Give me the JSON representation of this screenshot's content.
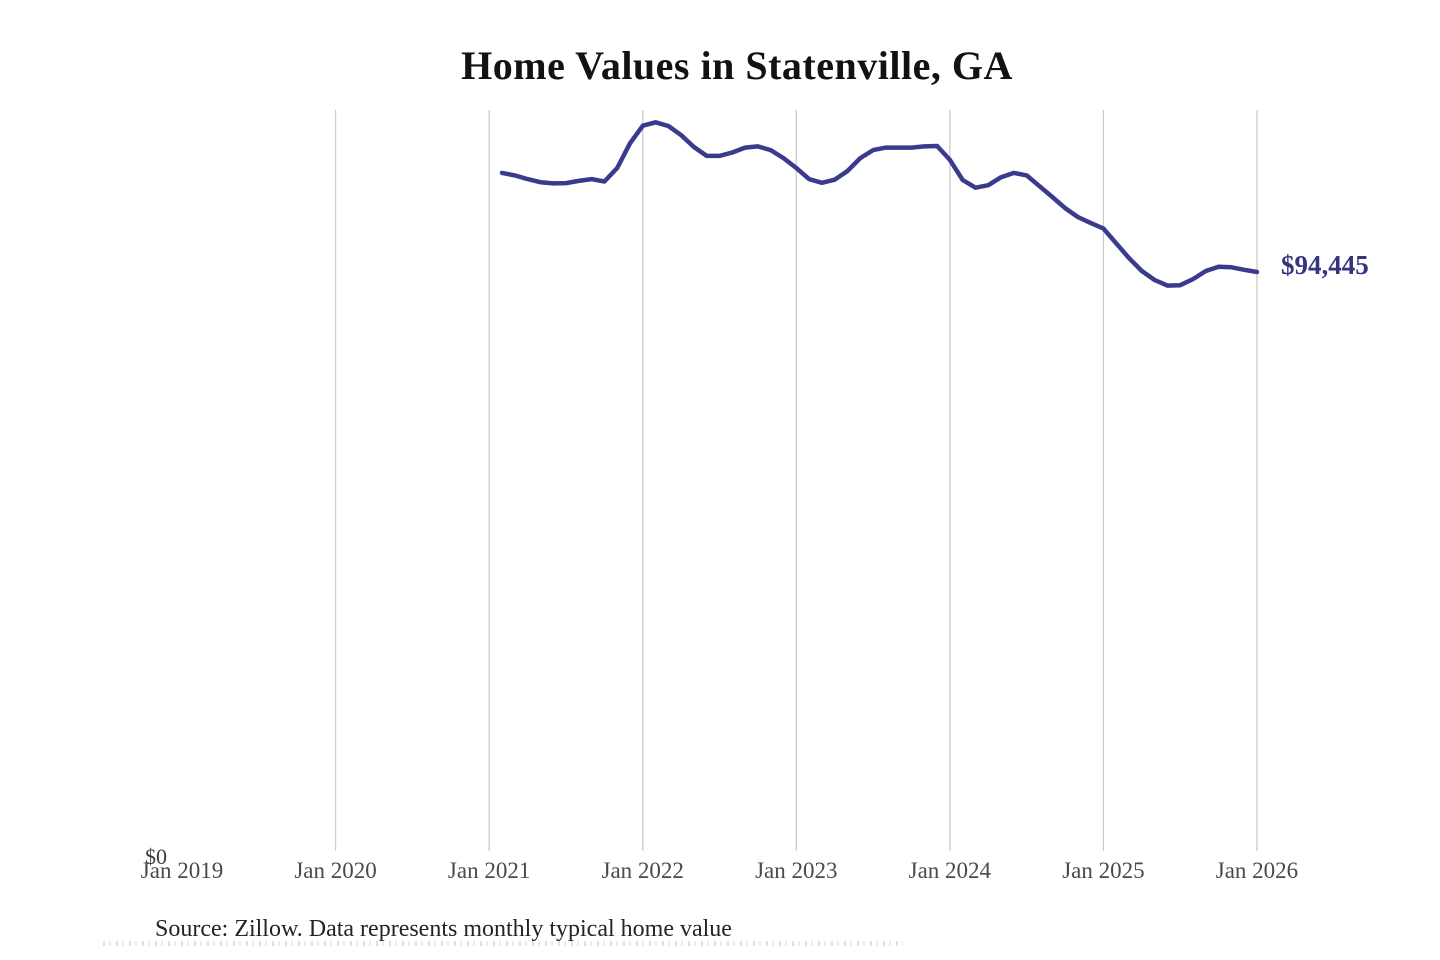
{
  "title": "Home Values in Statenville, GA",
  "source_note": "Source: Zillow. Data represents monthly typical home value",
  "colors": {
    "line": "#3b3b8e",
    "end_label_text": "#34347f",
    "gridline": "#cccccc",
    "axis_text": "#4a4a4a",
    "title_text": "#121212",
    "background": "#ffffff"
  },
  "chart_data": {
    "type": "line",
    "title": "Home Values in Statenville, GA",
    "xlabel": "",
    "ylabel": "",
    "legend": "none",
    "grid": "vertical-yearly-gridlines",
    "x_ticks": [
      "Jan 2019",
      "Jan 2020",
      "Jan 2021",
      "Jan 2022",
      "Jan 2023",
      "Jan 2024",
      "Jan 2025",
      "Jan 2026"
    ],
    "x_ticks_with_gridline": [
      "Jan 2020",
      "Jan 2021",
      "Jan 2022",
      "Jan 2023",
      "Jan 2024",
      "Jan 2025",
      "Jan 2026"
    ],
    "y_tick_labels": [
      "$0"
    ],
    "ylim": [
      0,
      120690
    ],
    "latest_value": 94445,
    "latest_value_label": "$94,445",
    "series": [
      {
        "name": "Monthly typical home value",
        "x_start": "Jan 2021",
        "x_end": "Dec 2025",
        "x_step": "1 month",
        "values": [
          110500,
          110100,
          109500,
          109000,
          108800,
          108850,
          109200,
          109500,
          109100,
          111300,
          115300,
          118150,
          118700,
          118100,
          116600,
          114700,
          113250,
          113250,
          113800,
          114600,
          114800,
          114200,
          112900,
          111300,
          109500,
          108900,
          109400,
          110800,
          112900,
          114200,
          114600,
          114600,
          114600,
          114800,
          114850,
          112600,
          109350,
          108100,
          108500,
          109800,
          110500,
          110100,
          108350,
          106600,
          104800,
          103350,
          102400,
          101500,
          99100,
          96700,
          94600,
          93150,
          92250,
          92300,
          93300,
          94600,
          95300,
          95200,
          94800,
          94445
        ]
      }
    ]
  }
}
